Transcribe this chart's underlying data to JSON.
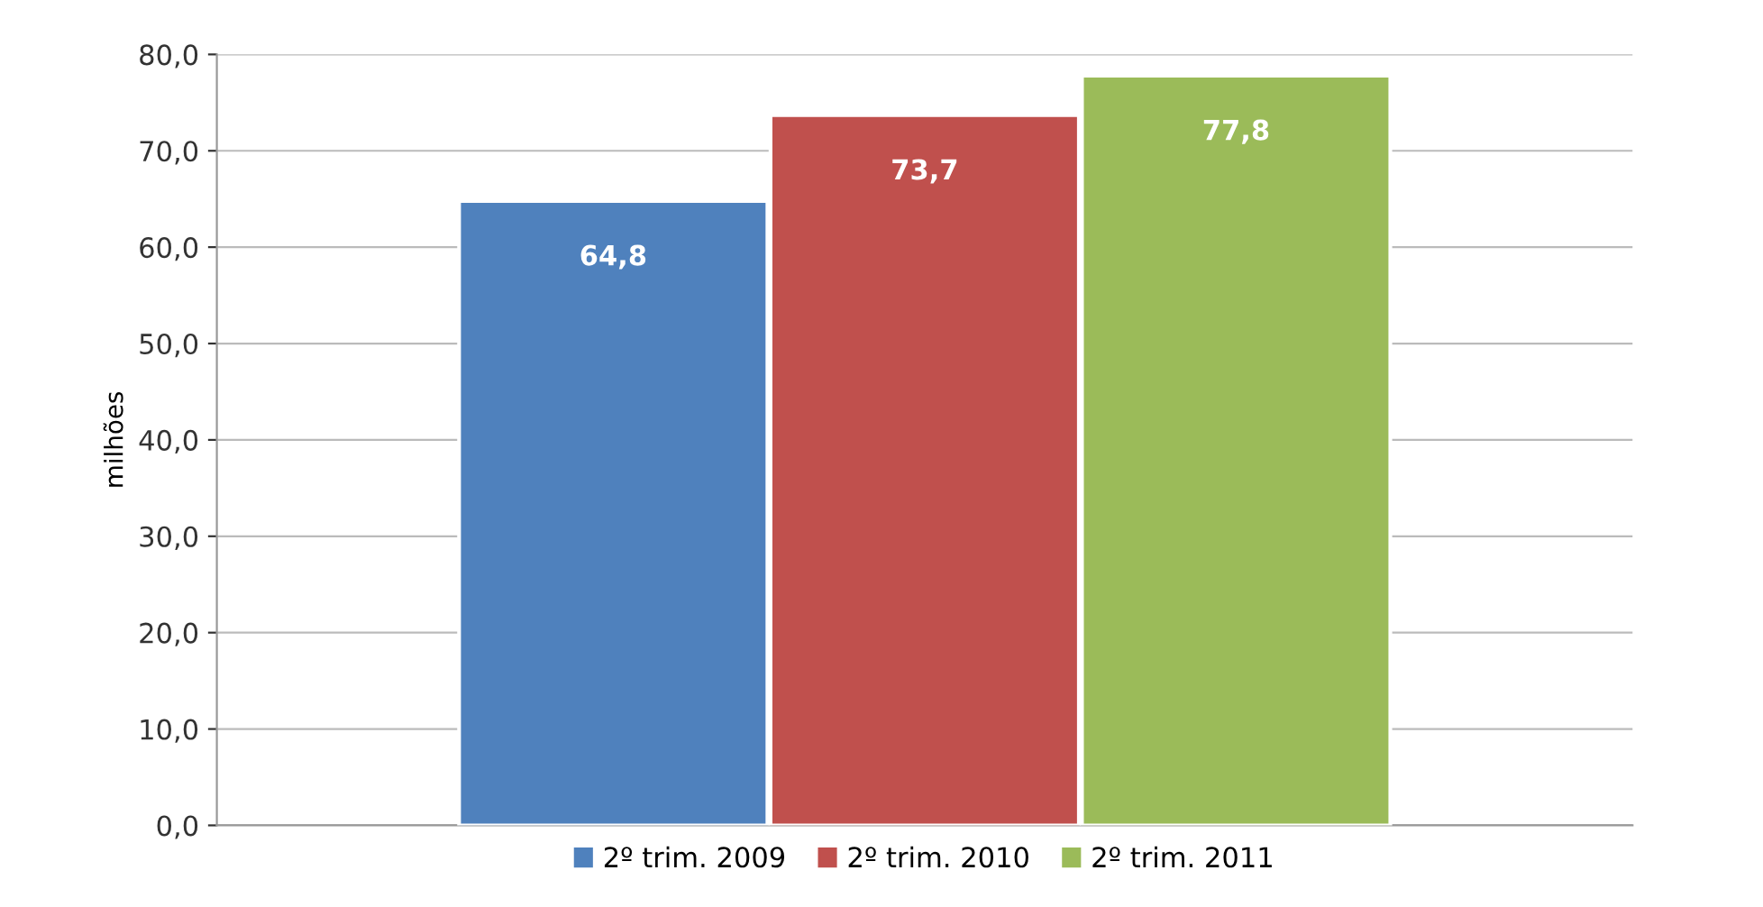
{
  "chart_data": {
    "type": "bar",
    "ylabel": "milhões",
    "categories": [
      null
    ],
    "series": [
      {
        "name": "2º trim. 2009",
        "color": "#4f81bd",
        "values": [
          64.8
        ],
        "value_labels": [
          "64,8"
        ]
      },
      {
        "name": "2º trim. 2010",
        "color": "#c0504d",
        "values": [
          73.7
        ],
        "value_labels": [
          "73,7"
        ]
      },
      {
        "name": "2º trim. 2011",
        "color": "#9bbb59",
        "values": [
          77.8
        ],
        "value_labels": [
          "77,8"
        ]
      }
    ],
    "ylim": [
      0,
      80
    ],
    "yticks": [
      {
        "value": 0,
        "label": "0,0"
      },
      {
        "value": 10,
        "label": "10,0"
      },
      {
        "value": 20,
        "label": "20,0"
      },
      {
        "value": 30,
        "label": "30,0"
      },
      {
        "value": 40,
        "label": "40,0"
      },
      {
        "value": 50,
        "label": "50,0"
      },
      {
        "value": 60,
        "label": "60,0"
      },
      {
        "value": 70,
        "label": "70,0"
      },
      {
        "value": 80,
        "label": "80,0"
      }
    ],
    "grid": "y",
    "legend": "bottom"
  }
}
